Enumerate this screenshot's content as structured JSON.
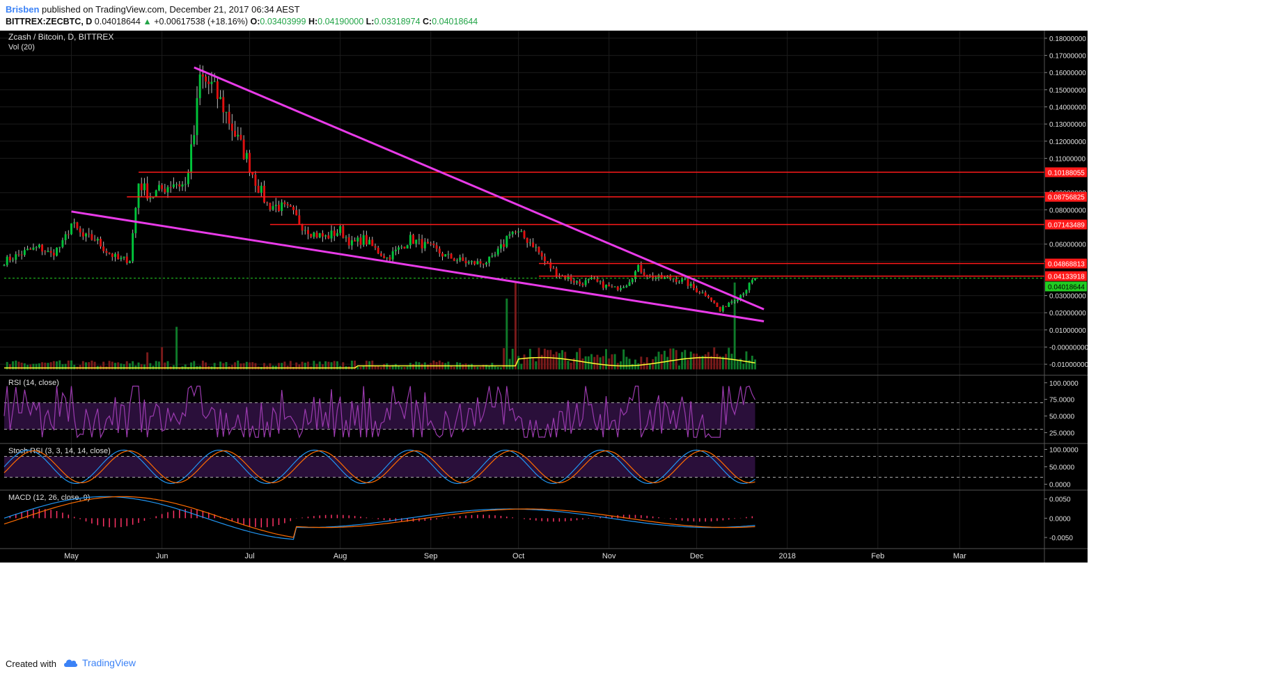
{
  "header": {
    "author": "Brisben",
    "published": "published on TradingView.com, December 21, 2017 06:34 AEST",
    "symbol": "BITTREX:ZECBTC, D",
    "last": "0.04018644",
    "change": "+0.00617538 (+18.16%)",
    "o_label": "O:",
    "o_value": "0.03403999",
    "h_label": "H:",
    "h_value": "0.04190000",
    "l_label": "L:",
    "l_value": "0.03318974",
    "c_label": "C:",
    "c_value": "0.04018644"
  },
  "footer": {
    "created_with": "Created with",
    "brand": "TradingView"
  },
  "colors": {
    "background": "#000000",
    "grid": "#1c1c1c",
    "axis_text": "#e0e0e0",
    "bull": "#00c43a",
    "bear": "#e01010",
    "trendline": "#e83be8",
    "level": "#ff1a1a",
    "vol_ma": "#ffff33",
    "rsi": "#9c3bb0",
    "stoch_k": "#2196f3",
    "stoch_d": "#ff6d00",
    "macd": "#2196f3",
    "signal": "#ff6d00",
    "hist": "#ff3366",
    "current": "#22cc22"
  },
  "chart_data": {
    "type": "candlestick",
    "title": "Zcash / Bitcoin, D, BITTREX",
    "volume_label": "Vol (20)",
    "x_labels": [
      "May",
      "Jun",
      "Jul",
      "Aug",
      "Sep",
      "Oct",
      "Nov",
      "Dec",
      "2018",
      "Feb",
      "Mar"
    ],
    "x_label_dates": [
      "2017-05-01",
      "2017-06-01",
      "2017-07-01",
      "2017-08-01",
      "2017-09-01",
      "2017-10-01",
      "2017-11-01",
      "2017-12-01",
      "2018-01-01",
      "2018-02-01",
      "2018-03-01"
    ],
    "date_range": [
      "2017-04-08",
      "2018-03-30"
    ],
    "price_axis": {
      "ylim": [
        -0.014,
        0.182
      ],
      "ticks": [
        "0.18000000",
        "0.17000000",
        "0.16000000",
        "0.15000000",
        "0.14000000",
        "0.13000000",
        "0.12000000",
        "0.11000000",
        "0.09000000",
        "0.08000000",
        "0.06000000",
        "0.05000000",
        "0.03000000",
        "0.02000000",
        "0.01000000",
        "-0.00000000",
        "-0.01000000"
      ],
      "tick_values": [
        0.18,
        0.17,
        0.16,
        0.15,
        0.14,
        0.13,
        0.12,
        0.11,
        0.09,
        0.08,
        0.06,
        0.05,
        0.03,
        0.02,
        0.01,
        0.0,
        -0.01
      ]
    },
    "candles_close": [
      [
        "2017-04-08",
        0.05
      ],
      [
        "2017-04-12",
        0.053
      ],
      [
        "2017-04-16",
        0.056
      ],
      [
        "2017-04-20",
        0.058
      ],
      [
        "2017-04-24",
        0.054
      ],
      [
        "2017-04-28",
        0.06
      ],
      [
        "2017-05-01",
        0.072
      ],
      [
        "2017-05-05",
        0.064
      ],
      [
        "2017-05-09",
        0.063
      ],
      [
        "2017-05-13",
        0.056
      ],
      [
        "2017-05-17",
        0.051
      ],
      [
        "2017-05-21",
        0.051
      ],
      [
        "2017-05-24",
        0.096
      ],
      [
        "2017-05-28",
        0.088
      ],
      [
        "2017-06-01",
        0.092
      ],
      [
        "2017-06-05",
        0.096
      ],
      [
        "2017-06-09",
        0.094
      ],
      [
        "2017-06-12",
        0.124
      ],
      [
        "2017-06-14",
        0.157
      ],
      [
        "2017-06-18",
        0.152
      ],
      [
        "2017-06-22",
        0.14
      ],
      [
        "2017-06-26",
        0.124
      ],
      [
        "2017-06-30",
        0.11
      ],
      [
        "2017-07-03",
        0.097
      ],
      [
        "2017-07-07",
        0.083
      ],
      [
        "2017-07-11",
        0.082
      ],
      [
        "2017-07-15",
        0.079
      ],
      [
        "2017-07-19",
        0.071
      ],
      [
        "2017-07-23",
        0.066
      ],
      [
        "2017-07-27",
        0.064
      ],
      [
        "2017-08-01",
        0.068
      ],
      [
        "2017-08-05",
        0.06
      ],
      [
        "2017-08-09",
        0.063
      ],
      [
        "2017-08-13",
        0.057
      ],
      [
        "2017-08-17",
        0.052
      ],
      [
        "2017-08-21",
        0.057
      ],
      [
        "2017-08-25",
        0.063
      ],
      [
        "2017-08-29",
        0.06
      ],
      [
        "2017-09-02",
        0.057
      ],
      [
        "2017-09-06",
        0.053
      ],
      [
        "2017-09-10",
        0.051
      ],
      [
        "2017-09-14",
        0.049
      ],
      [
        "2017-09-18",
        0.049
      ],
      [
        "2017-09-22",
        0.051
      ],
      [
        "2017-09-26",
        0.06
      ],
      [
        "2017-09-28",
        0.068
      ],
      [
        "2017-10-02",
        0.065
      ],
      [
        "2017-10-06",
        0.06
      ],
      [
        "2017-10-10",
        0.05
      ],
      [
        "2017-10-14",
        0.043
      ],
      [
        "2017-10-18",
        0.04
      ],
      [
        "2017-10-22",
        0.037
      ],
      [
        "2017-10-26",
        0.039
      ],
      [
        "2017-10-30",
        0.036
      ],
      [
        "2017-11-03",
        0.034
      ],
      [
        "2017-11-07",
        0.037
      ],
      [
        "2017-11-11",
        0.046
      ],
      [
        "2017-11-15",
        0.041
      ],
      [
        "2017-11-19",
        0.04
      ],
      [
        "2017-11-23",
        0.04
      ],
      [
        "2017-11-27",
        0.038
      ],
      [
        "2017-12-01",
        0.033
      ],
      [
        "2017-12-05",
        0.03
      ],
      [
        "2017-12-09",
        0.021
      ],
      [
        "2017-12-12",
        0.026
      ],
      [
        "2017-12-15",
        0.029
      ],
      [
        "2017-12-18",
        0.034
      ],
      [
        "2017-12-21",
        0.04018644
      ]
    ],
    "volume_ma_level": 0.0,
    "horizontal_levels": [
      {
        "value": 0.10188055,
        "label": "0.10188055",
        "from": "2017-05-24"
      },
      {
        "value": 0.08756825,
        "label": "0.08756825",
        "from": "2017-05-20"
      },
      {
        "value": 0.07143489,
        "label": "0.07143489",
        "from": "2017-07-08"
      },
      {
        "value": 0.04868813,
        "label": "0.04868813",
        "from": "2017-10-08"
      },
      {
        "value": 0.04133918,
        "label": "0.04133918",
        "from": "2017-10-08"
      }
    ],
    "current_price": {
      "value": 0.04018644,
      "label": "0.04018644"
    },
    "trendlines": [
      {
        "from": [
          "2017-06-12",
          0.163
        ],
        "to": [
          "2017-12-24",
          0.022
        ]
      },
      {
        "from": [
          "2017-05-01",
          0.079
        ],
        "to": [
          "2017-12-24",
          0.015
        ]
      }
    ],
    "panes": [
      {
        "name": "RSI (14, close)",
        "ylim": [
          15,
          105
        ],
        "ticks": [
          "100.0000",
          "75.0000",
          "50.0000",
          "25.0000"
        ],
        "tick_values": [
          100,
          75,
          50,
          25
        ],
        "band": [
          30,
          70
        ]
      },
      {
        "name": "Stoch RSI (3, 3, 14, 14, close)",
        "ylim": [
          -5,
          105
        ],
        "ticks": [
          "100.0000",
          "50.0000",
          "0.0000"
        ],
        "tick_values": [
          100,
          50,
          0
        ],
        "band": [
          20,
          80
        ]
      },
      {
        "name": "MACD (12, 26, close, 9)",
        "ylim": [
          -0.0068,
          0.0062
        ],
        "ticks": [
          "0.0050",
          "0.0000",
          "-0.0050"
        ],
        "tick_values": [
          0.005,
          0,
          -0.005
        ]
      }
    ]
  }
}
